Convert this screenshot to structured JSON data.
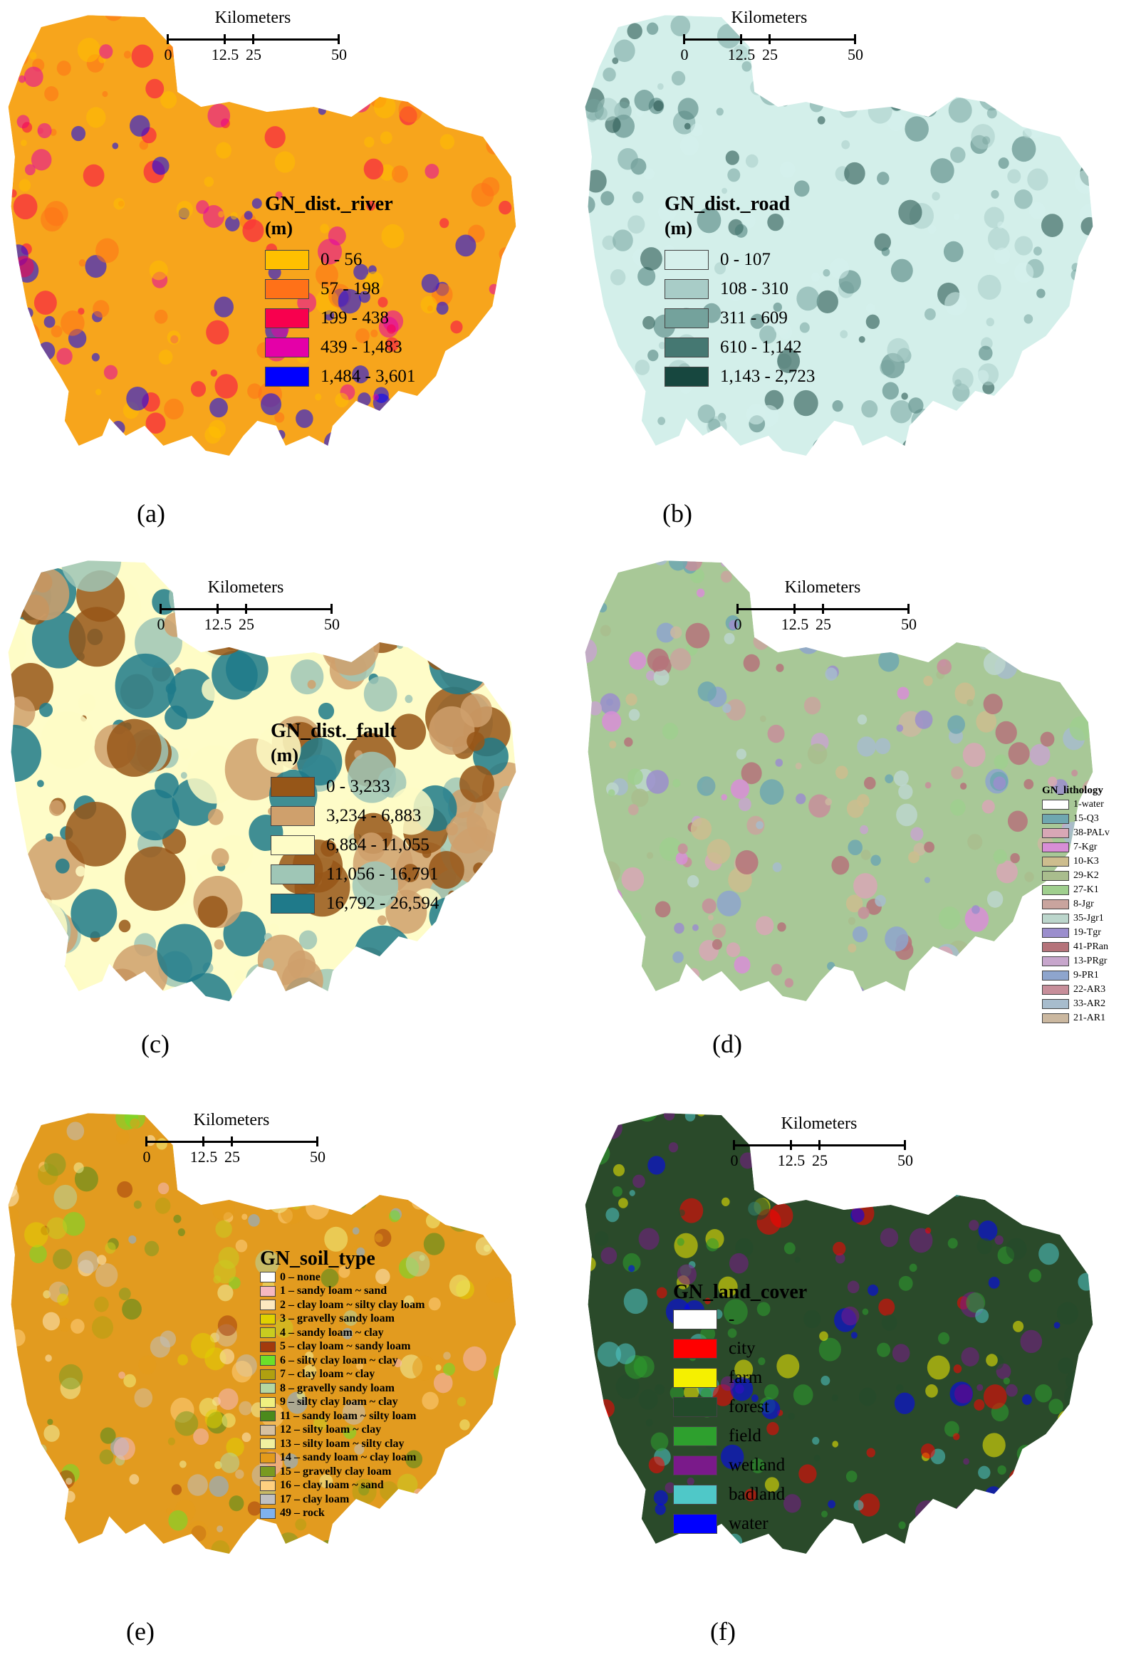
{
  "scale_bar": {
    "units": "Kilometers",
    "ticks": [
      "0",
      "12.5",
      "25",
      "50"
    ]
  },
  "panels": [
    {
      "id": "a",
      "caption": "(a)",
      "legend_title": "GN_dist._river",
      "legend_unit": "(m)",
      "fill": "#f7a51c",
      "texture": "#e33a5c",
      "classes": [
        {
          "label": "0 - 56",
          "color": "#ffc000"
        },
        {
          "label": "57 - 198",
          "color": "#ff7118"
        },
        {
          "label": "199 - 438",
          "color": "#f8004e"
        },
        {
          "label": "439 - 1,483",
          "color": "#e400a8"
        },
        {
          "label": "1,484 - 3,601",
          "color": "#0000ff"
        }
      ]
    },
    {
      "id": "b",
      "caption": "(b)",
      "legend_title": "GN_dist._road",
      "legend_unit": "(m)",
      "fill": "#d3efea",
      "texture": "#3d6f69",
      "classes": [
        {
          "label": "0 - 107",
          "color": "#d6f0ec"
        },
        {
          "label": "108 - 310",
          "color": "#a8ccc7"
        },
        {
          "label": "311 - 609",
          "color": "#74a29c"
        },
        {
          "label": "610 - 1,142",
          "color": "#457872"
        },
        {
          "label": "1,143 - 2,723",
          "color": "#17473f"
        }
      ]
    },
    {
      "id": "c",
      "caption": "(c)",
      "legend_title": "GN_dist._fault",
      "legend_unit": "(m)",
      "fill": "#fefcc8",
      "texture": "#96561c",
      "classes": [
        {
          "label": "0 - 3,233",
          "color": "#965618"
        },
        {
          "label": "3,234 - 6,883",
          "color": "#cfa06c"
        },
        {
          "label": "6,884 - 11,055",
          "color": "#fefcc6"
        },
        {
          "label": "11,056 - 16,791",
          "color": "#9fc6b6"
        },
        {
          "label": "16,792 - 26,594",
          "color": "#1f7a8a"
        }
      ]
    },
    {
      "id": "d",
      "caption": "(d)",
      "legend_title": "GN_lithology",
      "legend_unit": "",
      "fill": "#a8c897",
      "texture": "#c8b792",
      "classes": [
        {
          "label": "1-water",
          "color": "#ffffff"
        },
        {
          "label": "15-Q3",
          "color": "#6fa7b0"
        },
        {
          "label": "38-PALv",
          "color": "#d8a7b5"
        },
        {
          "label": "7-Kgr",
          "color": "#d88ed6"
        },
        {
          "label": "10-K3",
          "color": "#cdbd8e"
        },
        {
          "label": "29-K2",
          "color": "#a9bd8d"
        },
        {
          "label": "27-K1",
          "color": "#9fcf8e"
        },
        {
          "label": "8-Jgr",
          "color": "#c9a49e"
        },
        {
          "label": "35-Jgr1",
          "color": "#bcd6cc"
        },
        {
          "label": "19-Tgr",
          "color": "#9b8ecd"
        },
        {
          "label": "41-PRan",
          "color": "#b5737a"
        },
        {
          "label": "13-PRgr",
          "color": "#c7a6cc"
        },
        {
          "label": "9-PR1",
          "color": "#8ea5cd"
        },
        {
          "label": "22-AR3",
          "color": "#c78e9a"
        },
        {
          "label": "33-AR2",
          "color": "#a7bccd"
        },
        {
          "label": "21-AR1",
          "color": "#cbb8a0"
        }
      ]
    },
    {
      "id": "e",
      "caption": "(e)",
      "legend_title": "GN_soil_type",
      "legend_unit": "",
      "fill": "#e29b1f",
      "texture": "#7fb3ea",
      "classes": [
        {
          "label": "0 – none",
          "color": "#ffffff"
        },
        {
          "label": "1 – sandy loam ~ sand",
          "color": "#f6b8c0"
        },
        {
          "label": "2 – clay loam ~ silty clay loam",
          "color": "#fde9c0"
        },
        {
          "label": "3 – gravelly sandy loam",
          "color": "#e0d000"
        },
        {
          "label": "4 – sandy loam ~ clay",
          "color": "#c8cc20"
        },
        {
          "label": "5 – clay loam ~ sandy loam",
          "color": "#a33a0c"
        },
        {
          "label": "6 – silty clay loam ~ clay",
          "color": "#6be02a"
        },
        {
          "label": "7 – clay loam ~ clay",
          "color": "#b0a010"
        },
        {
          "label": "8 – gravelly sandy loam",
          "color": "#b5d6a0"
        },
        {
          "label": "9 – silty clay loam ~ clay",
          "color": "#f0f080"
        },
        {
          "label": "11 – sandy loam ~ silty loam",
          "color": "#4b8a1c"
        },
        {
          "label": "12 – silty loam ~ clay",
          "color": "#d6c0a0"
        },
        {
          "label": "13 – silty loam ~ silty clay",
          "color": "#f0f0a0"
        },
        {
          "label": "14 – sandy loam ~ clay loam",
          "color": "#e39a1a"
        },
        {
          "label": "15 – gravelly clay loam",
          "color": "#7a9a20"
        },
        {
          "label": "16 – clay loam ~ sand",
          "color": "#ffd080"
        },
        {
          "label": "17 – clay loam",
          "color": "#c0c0c0"
        },
        {
          "label": "49 –  rock",
          "color": "#7fb2ee"
        }
      ]
    },
    {
      "id": "f",
      "caption": "(f)",
      "legend_title": "GN_land_cover",
      "legend_unit": "",
      "fill": "#2a4a2a",
      "texture": "#e8e020",
      "classes": [
        {
          "label": "-",
          "color": "#ffffff"
        },
        {
          "label": "city",
          "color": "#ff0000"
        },
        {
          "label": "farm",
          "color": "#f5f000"
        },
        {
          "label": "forest",
          "color": "#234a2a"
        },
        {
          "label": "field",
          "color": "#2ea02e"
        },
        {
          "label": "wetland",
          "color": "#7a1a8a"
        },
        {
          "label": "badland",
          "color": "#4fc8c8"
        },
        {
          "label": "water",
          "color": "#0000ff"
        }
      ]
    }
  ]
}
